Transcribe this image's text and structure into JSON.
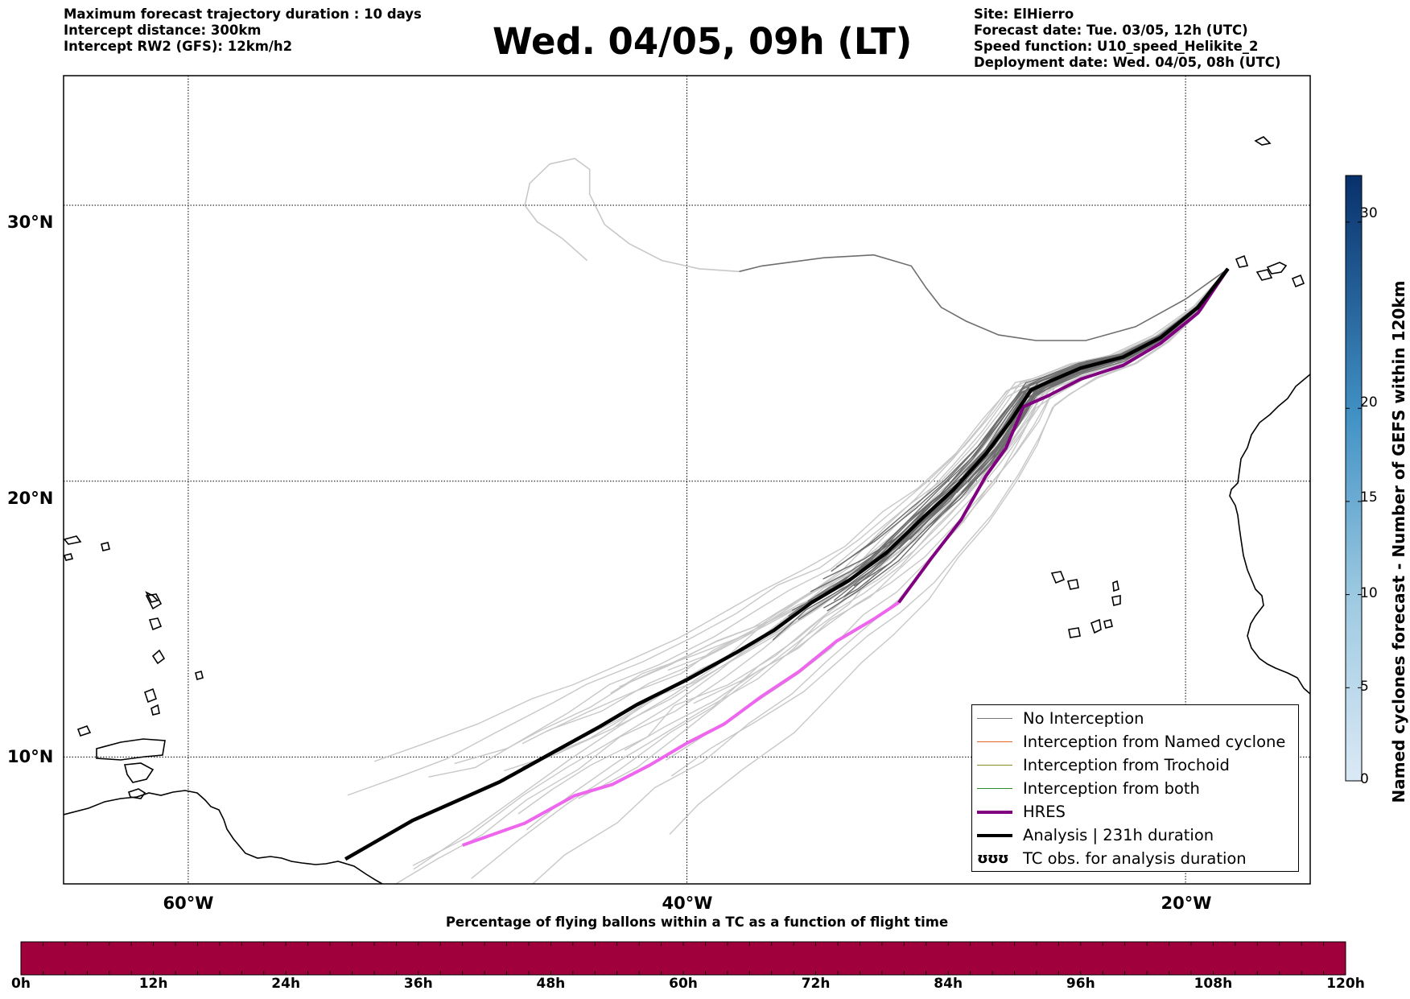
{
  "header": {
    "left_lines": [
      "Maximum forecast trajectory duration : 10 days",
      "Intercept distance: 300km",
      "Intercept RW2 (GFS):  12km/h2"
    ],
    "title": "Wed. 04/05, 09h (LT)",
    "right_lines": [
      "Site: ElHierro",
      "Forecast date: Tue. 03/05, 12h (UTC)",
      "Speed function: U10_speed_Helikite_2",
      "Deployment date: Wed. 04/05, 08h (UTC)"
    ]
  },
  "map": {
    "lat_labels": [
      "30°N",
      "20°N",
      "10°N"
    ],
    "lon_labels": [
      "60°W",
      "40°W",
      "20°W"
    ],
    "lon_range": [
      -65,
      -15
    ],
    "lat_range": [
      5.4,
      34.7
    ],
    "gridlines": {
      "lons": [
        -60,
        -40,
        -20
      ],
      "lats": [
        10,
        20,
        30
      ]
    },
    "launch_site": {
      "lon": -18.3,
      "lat": 27.7
    },
    "analysis_track": [
      [
        -18.3,
        27.7
      ],
      [
        -19.5,
        26.3
      ],
      [
        -21,
        25.2
      ],
      [
        -22.5,
        24.5
      ],
      [
        -24.2,
        24.1
      ],
      [
        -25.5,
        23.6
      ],
      [
        -26.2,
        23.3
      ],
      [
        -27,
        22.2
      ],
      [
        -28,
        21
      ],
      [
        -29.3,
        19.7
      ],
      [
        -30.5,
        18.7
      ],
      [
        -32,
        17.4
      ],
      [
        -33.5,
        16.4
      ],
      [
        -35,
        15.6
      ],
      [
        -36.5,
        14.6
      ],
      [
        -38,
        13.8
      ],
      [
        -40,
        12.8
      ],
      [
        -42,
        11.9
      ],
      [
        -43.5,
        11.1
      ],
      [
        -45.5,
        10.1
      ],
      [
        -47.5,
        9.1
      ],
      [
        -49,
        8.5
      ],
      [
        -51,
        7.7
      ],
      [
        -53.7,
        6.3
      ]
    ],
    "hres_track": [
      [
        -18.3,
        27.7
      ],
      [
        -19.5,
        26.1
      ],
      [
        -21,
        25
      ],
      [
        -22.5,
        24.2
      ],
      [
        -24.2,
        23.7
      ],
      [
        -25.5,
        23.1
      ],
      [
        -26.5,
        22.7
      ],
      [
        -27.2,
        21.2
      ],
      [
        -28,
        20.2
      ],
      [
        -29,
        18.6
      ],
      [
        -30.2,
        17.2
      ],
      [
        -31.5,
        15.6
      ],
      [
        -32.5,
        15
      ],
      [
        -34,
        14.2
      ],
      [
        -35.5,
        13.1
      ],
      [
        -37,
        12.2
      ],
      [
        -38.5,
        11.2
      ],
      [
        -40,
        10.5
      ],
      [
        -41.5,
        9.7
      ],
      [
        -43,
        9
      ],
      [
        -44.5,
        8.6
      ],
      [
        -46.5,
        7.6
      ],
      [
        -49,
        6.8
      ]
    ],
    "dark_loop_track": [
      [
        -18.3,
        27.7
      ],
      [
        -20,
        26.6
      ],
      [
        -22,
        25.6
      ],
      [
        -24,
        25.1
      ],
      [
        -26,
        25.1
      ],
      [
        -27.5,
        25.3
      ],
      [
        -28.8,
        25.8
      ],
      [
        -29.8,
        26.3
      ],
      [
        -30.4,
        27
      ],
      [
        -31,
        27.8
      ],
      [
        -32.5,
        28.2
      ],
      [
        -34.5,
        28.1
      ],
      [
        -37,
        27.8
      ],
      [
        -37.9,
        27.6
      ]
    ],
    "light_loop_track": [
      [
        -37.9,
        27.6
      ],
      [
        -39.5,
        27.7
      ],
      [
        -41,
        28
      ],
      [
        -42.3,
        28.6
      ],
      [
        -43.3,
        29.3
      ],
      [
        -43.9,
        30.4
      ],
      [
        -43.9,
        31.3
      ],
      [
        -44.5,
        31.7
      ],
      [
        -45.5,
        31.5
      ],
      [
        -46.3,
        30.8
      ],
      [
        -46.5,
        30
      ],
      [
        -46,
        29.4
      ],
      [
        -45,
        28.8
      ],
      [
        -44,
        28
      ]
    ]
  },
  "legend": {
    "items": [
      {
        "label": "No Interception",
        "color": "#777777",
        "width": 1.5
      },
      {
        "label": "Interception from Named cyclone",
        "color": "#e8642c",
        "width": 1.5
      },
      {
        "label": "Interception from Trochoid",
        "color": "#8b8b2a",
        "width": 1.5
      },
      {
        "label": "Interception from both",
        "color": "#2e8b2e",
        "width": 1.5
      },
      {
        "label": "HRES",
        "color": "#800080",
        "width": 4
      },
      {
        "label": "Analysis | 231h duration",
        "color": "#000000",
        "width": 4
      },
      {
        "label": "TC obs. for analysis duration",
        "symbol": "ʊʊʊ"
      }
    ]
  },
  "colorbar": {
    "title": "Named cyclones forecast - Number of GEFS within 120km",
    "ticks": [
      "0",
      "5",
      "10",
      "15",
      "20",
      "30"
    ],
    "colors": [
      "#d7e6f5",
      "#08306b"
    ]
  },
  "flight_bar": {
    "title": "Percentage of flying ballons within a TC as a function of flight time",
    "color": "#a0003c",
    "ticks": [
      "0h",
      "12h",
      "24h",
      "36h",
      "48h",
      "60h",
      "72h",
      "84h",
      "96h",
      "108h",
      "120h"
    ]
  }
}
